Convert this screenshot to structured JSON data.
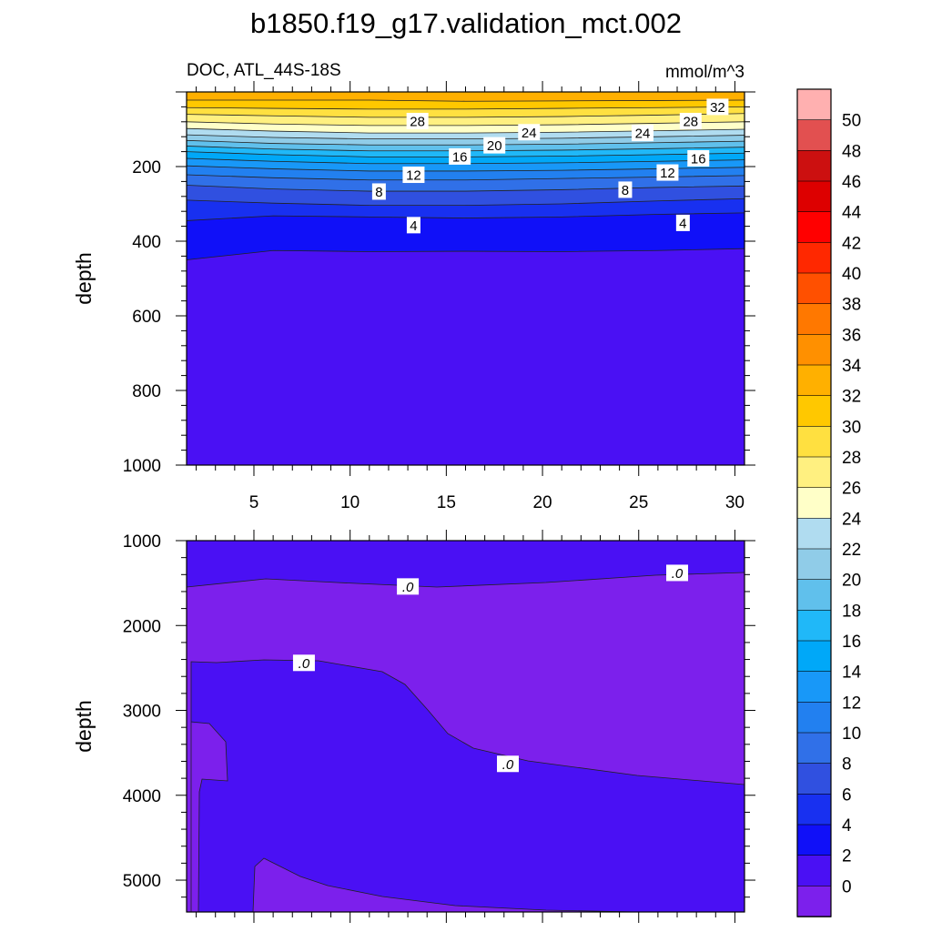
{
  "chart_data": [
    {
      "type": "contour",
      "title": "b1850.f19_g17.validation_mct.002",
      "subtitle_left": "DOC, ATL_44S-18S",
      "subtitle_right": "mmol/m^3",
      "panel": "upper",
      "ylabel": "depth",
      "xlabel": "",
      "xlim": [
        1.5,
        30.5
      ],
      "ylim": [
        0,
        1000
      ],
      "y_inverted": true,
      "xticks": [
        5,
        10,
        15,
        20,
        25,
        30
      ],
      "yticks": [
        200,
        400,
        600,
        800,
        1000
      ],
      "contour_labels": [
        {
          "text": "32",
          "x": 29.1,
          "y": 40
        },
        {
          "text": "28",
          "x": 13.5,
          "y": 78
        },
        {
          "text": "28",
          "x": 27.7,
          "y": 78
        },
        {
          "text": "24",
          "x": 19.3,
          "y": 108
        },
        {
          "text": "24",
          "x": 25.2,
          "y": 110
        },
        {
          "text": "20",
          "x": 17.5,
          "y": 143
        },
        {
          "text": "16",
          "x": 15.7,
          "y": 173
        },
        {
          "text": "16",
          "x": 28.1,
          "y": 178
        },
        {
          "text": "12",
          "x": 13.3,
          "y": 222
        },
        {
          "text": "12",
          "x": 26.5,
          "y": 216
        },
        {
          "text": "8",
          "x": 11.5,
          "y": 267
        },
        {
          "text": "8",
          "x": 24.3,
          "y": 262
        },
        {
          "text": "4",
          "x": 13.3,
          "y": 357
        },
        {
          "text": "4",
          "x": 27.3,
          "y": 351
        }
      ],
      "contour_lines": [
        {
          "level": 32,
          "depth": [
            22,
            22,
            22,
            25,
            24,
            23,
            22
          ]
        },
        {
          "level": 30,
          "depth": [
            42,
            44,
            46,
            46,
            44,
            42,
            40
          ]
        },
        {
          "level": 28,
          "depth": [
            60,
            64,
            68,
            68,
            66,
            62,
            58
          ]
        },
        {
          "level": 26,
          "depth": [
            80,
            86,
            90,
            90,
            88,
            84,
            80
          ]
        },
        {
          "level": 24,
          "depth": [
            98,
            105,
            110,
            110,
            108,
            104,
            100
          ]
        },
        {
          "level": 22,
          "depth": [
            115,
            122,
            126,
            126,
            124,
            120,
            116
          ]
        },
        {
          "level": 20,
          "depth": [
            130,
            138,
            142,
            142,
            140,
            136,
            132
          ]
        },
        {
          "level": 18,
          "depth": [
            145,
            153,
            158,
            158,
            156,
            152,
            148
          ]
        },
        {
          "level": 16,
          "depth": [
            160,
            168,
            174,
            174,
            172,
            168,
            164
          ]
        },
        {
          "level": 14,
          "depth": [
            178,
            186,
            192,
            192,
            190,
            186,
            182
          ]
        },
        {
          "level": 12,
          "depth": [
            198,
            206,
            212,
            212,
            210,
            206,
            202
          ]
        },
        {
          "level": 10,
          "depth": [
            222,
            230,
            236,
            236,
            232,
            228,
            224
          ]
        },
        {
          "level": 8,
          "depth": [
            250,
            260,
            266,
            266,
            262,
            256,
            252
          ]
        },
        {
          "level": 6,
          "depth": [
            290,
            298,
            304,
            304,
            300,
            292,
            286
          ]
        },
        {
          "level": 4,
          "depth": [
            345,
            332,
            335,
            338,
            335,
            328,
            324
          ]
        },
        {
          "level": 2,
          "depth": [
            450,
            425,
            428,
            427,
            428,
            425,
            420
          ]
        }
      ],
      "contour_x": [
        1.5,
        6,
        11,
        16,
        21,
        26,
        30.5
      ]
    },
    {
      "type": "contour",
      "panel": "lower",
      "ylabel": "depth",
      "xlabel": "",
      "xlim": [
        1.5,
        30.5
      ],
      "ylim": [
        1000,
        5375
      ],
      "y_inverted": true,
      "xticks": [
        5,
        10,
        15,
        20,
        25,
        30
      ],
      "yticks": [
        1000,
        2000,
        3000,
        4000,
        5000
      ],
      "contour_labels": [
        {
          "text": ".0",
          "x": 13.0,
          "y": 1540
        },
        {
          "text": ".0",
          "x": 27.0,
          "y": 1380
        },
        {
          "text": ".0",
          "x": 7.6,
          "y": 2440
        },
        {
          "text": ".0",
          "x": 18.2,
          "y": 3630
        }
      ]
    }
  ],
  "colorbar": {
    "labels": [
      "50",
      "48",
      "46",
      "44",
      "42",
      "40",
      "38",
      "36",
      "34",
      "32",
      "30",
      "28",
      "26",
      "24",
      "22",
      "20",
      "18",
      "16",
      "14",
      "12",
      "10",
      "8",
      "6",
      "4",
      "2",
      "0"
    ],
    "colors": [
      "#ffb0b0",
      "#e25050",
      "#cc1010",
      "#dd0000",
      "#ff0000",
      "#ff2800",
      "#ff5000",
      "#ff7800",
      "#ff9000",
      "#ffb000",
      "#ffc800",
      "#ffe040",
      "#fff080",
      "#ffffc8",
      "#b0dcf0",
      "#90cce8",
      "#60c0ec",
      "#20b8f8",
      "#00a8f8",
      "#1898f8",
      "#2280f0",
      "#3070e8",
      "#3050e0",
      "#1830f0",
      "#1010f8",
      "#4a10f4",
      "#7c20ec"
    ]
  },
  "fill_colors": {
    "band_0_2": "#4a10f4",
    "band_neg": "#7c20ec",
    "band_2_4": "#1010f8",
    "band_4_6": "#1830f0"
  }
}
